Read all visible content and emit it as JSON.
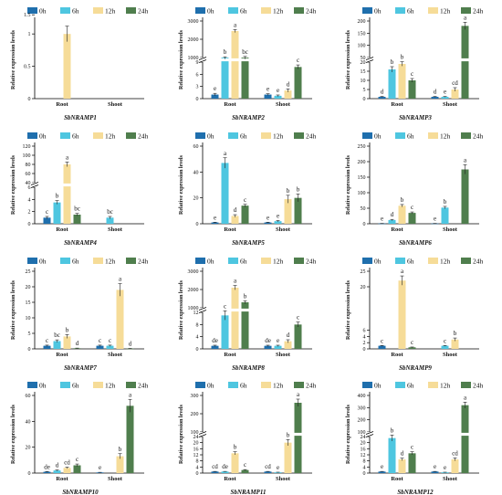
{
  "legend": [
    "0h",
    "6h",
    "12h",
    "24h"
  ],
  "colors": [
    "#1f6fad",
    "#4ec6e0",
    "#f6dc98",
    "#4f7e4d"
  ],
  "chart_data": [
    {
      "type": "bar",
      "title": "SbNRAMP1",
      "ylabel": "Relative expression levels",
      "categories": [
        "Root",
        "Shoot"
      ],
      "segments": [
        {
          "min": 0,
          "max": 1.2,
          "ticks": [
            0.0,
            0.5,
            1.0,
            1.5
          ]
        }
      ],
      "series": [
        {
          "name": "0h",
          "values": [
            0,
            0
          ],
          "err": [
            0,
            0
          ],
          "sig": [
            "",
            ""
          ]
        },
        {
          "name": "6h",
          "values": [
            0,
            0
          ],
          "err": [
            0,
            0
          ],
          "sig": [
            "",
            ""
          ]
        },
        {
          "name": "12h",
          "values": [
            1.0,
            0
          ],
          "err": [
            0.12,
            0
          ],
          "sig": [
            "",
            ""
          ]
        },
        {
          "name": "24h",
          "values": [
            0,
            0
          ],
          "err": [
            0,
            0
          ],
          "sig": [
            "",
            ""
          ]
        }
      ]
    },
    {
      "type": "bar",
      "title": "SbNRAMP2",
      "ylabel": "Relative expression levels",
      "categories": [
        "Root",
        "Shoot"
      ],
      "segments": [
        {
          "min": 0,
          "max": 9,
          "ticks": [
            0,
            3,
            6,
            9
          ]
        },
        {
          "min": 1000,
          "max": 3000,
          "ticks": [
            1000,
            2000,
            3000
          ]
        }
      ],
      "series": [
        {
          "name": "0h",
          "values": [
            1,
            1
          ],
          "err": [
            0.3,
            0.2
          ],
          "sig": [
            "e",
            "e"
          ]
        },
        {
          "name": "6h",
          "values": [
            1000,
            0.7
          ],
          "err": [
            40,
            0.2
          ],
          "sig": [
            "b",
            "e"
          ]
        },
        {
          "name": "12h",
          "values": [
            2450,
            2
          ],
          "err": [
            80,
            0.4
          ],
          "sig": [
            "a",
            "d"
          ]
        },
        {
          "name": "24h",
          "values": [
            1000,
            7.8
          ],
          "err": [
            60,
            0.5
          ],
          "sig": [
            "bc",
            "c"
          ]
        }
      ]
    },
    {
      "type": "bar",
      "title": "SbNRAMP3",
      "ylabel": "Relative expression levels",
      "categories": [
        "Root",
        "Shoot"
      ],
      "segments": [
        {
          "min": 0,
          "max": 20,
          "ticks": [
            0,
            5,
            10,
            15,
            20
          ]
        },
        {
          "min": 50,
          "max": 200,
          "ticks": [
            50,
            100,
            150,
            200
          ]
        }
      ],
      "series": [
        {
          "name": "0h",
          "values": [
            1,
            1
          ],
          "err": [
            0.2,
            0.2
          ],
          "sig": [
            "d",
            "d"
          ]
        },
        {
          "name": "6h",
          "values": [
            16,
            1
          ],
          "err": [
            1.5,
            0.2
          ],
          "sig": [
            "b",
            "e"
          ]
        },
        {
          "name": "12h",
          "values": [
            19,
            5
          ],
          "err": [
            1.2,
            1
          ],
          "sig": [
            "b",
            "cd"
          ]
        },
        {
          "name": "24h",
          "values": [
            10,
            180
          ],
          "err": [
            1,
            15
          ],
          "sig": [
            "c",
            "a"
          ]
        }
      ]
    },
    {
      "type": "bar",
      "title": "SbNRAMP4",
      "ylabel": "Relative expression levels",
      "categories": [
        "Root",
        "Shoot"
      ],
      "segments": [
        {
          "min": 0,
          "max": 6,
          "ticks": [
            0,
            2,
            4,
            6
          ]
        },
        {
          "min": 40,
          "max": 120,
          "ticks": [
            40,
            60,
            80,
            100,
            120
          ]
        }
      ],
      "series": [
        {
          "name": "0h",
          "values": [
            1,
            0
          ],
          "err": [
            0.2,
            0
          ],
          "sig": [
            "c",
            ""
          ]
        },
        {
          "name": "6h",
          "values": [
            3.5,
            1
          ],
          "err": [
            0.3,
            0.2
          ],
          "sig": [
            "b",
            "bc"
          ]
        },
        {
          "name": "12h",
          "values": [
            80,
            0
          ],
          "err": [
            5,
            0
          ],
          "sig": [
            "a",
            ""
          ]
        },
        {
          "name": "24h",
          "values": [
            1.5,
            0
          ],
          "err": [
            0.2,
            0
          ],
          "sig": [
            "bc",
            ""
          ]
        }
      ]
    },
    {
      "type": "bar",
      "title": "SbNRAMP5",
      "ylabel": "Relative expression levels",
      "categories": [
        "Root",
        "Shoot"
      ],
      "segments": [
        {
          "min": 0,
          "max": 60,
          "ticks": [
            0,
            20,
            40,
            60
          ]
        }
      ],
      "series": [
        {
          "name": "0h",
          "values": [
            1,
            1
          ],
          "err": [
            0.2,
            0.2
          ],
          "sig": [
            "e",
            "e"
          ]
        },
        {
          "name": "6h",
          "values": [
            47,
            2
          ],
          "err": [
            4,
            0.5
          ],
          "sig": [
            "a",
            "e"
          ]
        },
        {
          "name": "12h",
          "values": [
            6,
            19
          ],
          "err": [
            1,
            3
          ],
          "sig": [
            "d",
            "b"
          ]
        },
        {
          "name": "24h",
          "values": [
            14,
            20
          ],
          "err": [
            1,
            3
          ],
          "sig": [
            "c",
            "b"
          ]
        }
      ]
    },
    {
      "type": "bar",
      "title": "SbNRAMP6",
      "ylabel": "Relative expression levels",
      "categories": [
        "Root",
        "Shoot"
      ],
      "segments": [
        {
          "min": 0,
          "max": 250,
          "ticks": [
            0,
            50,
            100,
            150,
            200,
            250
          ]
        }
      ],
      "series": [
        {
          "name": "0h",
          "values": [
            1,
            1
          ],
          "err": [
            0.2,
            0.2
          ],
          "sig": [
            "e",
            "e"
          ]
        },
        {
          "name": "6h",
          "values": [
            12,
            52
          ],
          "err": [
            2,
            4
          ],
          "sig": [
            "d",
            "b"
          ]
        },
        {
          "name": "12h",
          "values": [
            58,
            0
          ],
          "err": [
            4,
            0
          ],
          "sig": [
            "b",
            ""
          ]
        },
        {
          "name": "24h",
          "values": [
            35,
            175
          ],
          "err": [
            3,
            15
          ],
          "sig": [
            "c",
            "a"
          ]
        }
      ]
    },
    {
      "type": "bar",
      "title": "SbNRAMP7",
      "ylabel": "Relative expression levels",
      "categories": [
        "Root",
        "Shoot"
      ],
      "segments": [
        {
          "min": 0,
          "max": 25,
          "ticks": [
            0,
            5,
            10,
            15,
            20,
            25
          ]
        }
      ],
      "series": [
        {
          "name": "0h",
          "values": [
            1,
            1
          ],
          "err": [
            0.2,
            0.2
          ],
          "sig": [
            "c",
            "c"
          ]
        },
        {
          "name": "6h",
          "values": [
            2.5,
            1
          ],
          "err": [
            0.4,
            0.2
          ],
          "sig": [
            "bc",
            "c"
          ]
        },
        {
          "name": "12h",
          "values": [
            4,
            19
          ],
          "err": [
            0.6,
            2
          ],
          "sig": [
            "b",
            "a"
          ]
        },
        {
          "name": "24h",
          "values": [
            0.2,
            0.1
          ],
          "err": [
            0.05,
            0.05
          ],
          "sig": [
            "d",
            "d"
          ]
        }
      ]
    },
    {
      "type": "bar",
      "title": "SbNRAMP8",
      "ylabel": "Relative expression levels",
      "categories": [
        "Root",
        "Shoot"
      ],
      "segments": [
        {
          "min": 0,
          "max": 12,
          "ticks": [
            0,
            4,
            8,
            12
          ]
        },
        {
          "min": 1000,
          "max": 3000,
          "ticks": [
            1000,
            2000,
            3000
          ]
        }
      ],
      "series": [
        {
          "name": "0h",
          "values": [
            1,
            1
          ],
          "err": [
            0.2,
            0.2
          ],
          "sig": [
            "de",
            "de"
          ]
        },
        {
          "name": "6h",
          "values": [
            11,
            1
          ],
          "err": [
            1.5,
            0.2
          ],
          "sig": [
            "c",
            "e"
          ]
        },
        {
          "name": "12h",
          "values": [
            2100,
            2.5
          ],
          "err": [
            120,
            0.5
          ],
          "sig": [
            "a",
            "d"
          ]
        },
        {
          "name": "24h",
          "values": [
            1300,
            8
          ],
          "err": [
            80,
            0.8
          ],
          "sig": [
            "b",
            "c"
          ]
        }
      ]
    },
    {
      "type": "bar",
      "title": "SbNRAMP9",
      "ylabel": "Relative expression levels",
      "categories": [
        "Root",
        "Shoot"
      ],
      "segments": [
        {
          "min": 0,
          "max": 25,
          "ticks": [
            0,
            2,
            4,
            6,
            20,
            25
          ]
        }
      ],
      "series": [
        {
          "name": "0h",
          "values": [
            1,
            0
          ],
          "err": [
            0.1,
            0
          ],
          "sig": [
            "c",
            ""
          ]
        },
        {
          "name": "6h",
          "values": [
            0,
            1
          ],
          "err": [
            0,
            0.1
          ],
          "sig": [
            "",
            "c"
          ]
        },
        {
          "name": "12h",
          "values": [
            22,
            3
          ],
          "err": [
            1.5,
            0.5
          ],
          "sig": [
            "a",
            "b"
          ]
        },
        {
          "name": "24h",
          "values": [
            0.5,
            0
          ],
          "err": [
            0.1,
            0
          ],
          "sig": [
            "c",
            ""
          ]
        }
      ]
    },
    {
      "type": "bar",
      "title": "SbNRAMP10",
      "ylabel": "Relative expression levels",
      "categories": [
        "Root",
        "Shoot"
      ],
      "segments": [
        {
          "min": 0,
          "max": 60,
          "ticks": [
            0,
            20,
            40,
            60
          ]
        }
      ],
      "series": [
        {
          "name": "0h",
          "values": [
            1,
            0.5
          ],
          "err": [
            0.2,
            0.1
          ],
          "sig": [
            "de",
            "e"
          ]
        },
        {
          "name": "6h",
          "values": [
            2,
            0
          ],
          "err": [
            0.4,
            0
          ],
          "sig": [
            "d",
            ""
          ]
        },
        {
          "name": "12h",
          "values": [
            4,
            13
          ],
          "err": [
            0.6,
            2
          ],
          "sig": [
            "cd",
            "b"
          ]
        },
        {
          "name": "24h",
          "values": [
            6,
            52
          ],
          "err": [
            1,
            5
          ],
          "sig": [
            "c",
            "a"
          ]
        }
      ]
    },
    {
      "type": "bar",
      "title": "SbNRAMP11",
      "ylabel": "Relative expression levels",
      "categories": [
        "Root",
        "Shoot"
      ],
      "segments": [
        {
          "min": 0,
          "max": 24,
          "ticks": [
            0,
            4,
            8,
            12,
            16,
            20,
            24
          ]
        },
        {
          "min": 100,
          "max": 300,
          "ticks": [
            100,
            200,
            300
          ]
        }
      ],
      "series": [
        {
          "name": "0h",
          "values": [
            1,
            1
          ],
          "err": [
            0.1,
            0.1
          ],
          "sig": [
            "cd",
            "cd"
          ]
        },
        {
          "name": "6h",
          "values": [
            1,
            0.5
          ],
          "err": [
            0.1,
            0.1
          ],
          "sig": [
            "de",
            "e"
          ]
        },
        {
          "name": "12h",
          "values": [
            13,
            20
          ],
          "err": [
            1,
            2
          ],
          "sig": [
            "b",
            "b"
          ]
        },
        {
          "name": "24h",
          "values": [
            2,
            260
          ],
          "err": [
            0.3,
            20
          ],
          "sig": [
            "c",
            "a"
          ]
        }
      ]
    },
    {
      "type": "bar",
      "title": "SbNRAMP12",
      "ylabel": "Relative expression levels",
      "categories": [
        "Root",
        "Shoot"
      ],
      "segments": [
        {
          "min": 0,
          "max": 24,
          "ticks": [
            0,
            4,
            8,
            12,
            16,
            20,
            24
          ]
        },
        {
          "min": 100,
          "max": 400,
          "ticks": [
            100,
            200,
            300,
            400
          ]
        }
      ],
      "series": [
        {
          "name": "0h",
          "values": [
            1,
            1
          ],
          "err": [
            0.1,
            0.1
          ],
          "sig": [
            "e",
            "e"
          ]
        },
        {
          "name": "6h",
          "values": [
            23,
            0.5
          ],
          "err": [
            2,
            0.1
          ],
          "sig": [
            "b",
            "e"
          ]
        },
        {
          "name": "12h",
          "values": [
            9,
            9
          ],
          "err": [
            0.8,
            1
          ],
          "sig": [
            "d",
            "cd"
          ]
        },
        {
          "name": "24h",
          "values": [
            13,
            320
          ],
          "err": [
            1,
            25
          ],
          "sig": [
            "c",
            "a"
          ]
        }
      ]
    }
  ]
}
